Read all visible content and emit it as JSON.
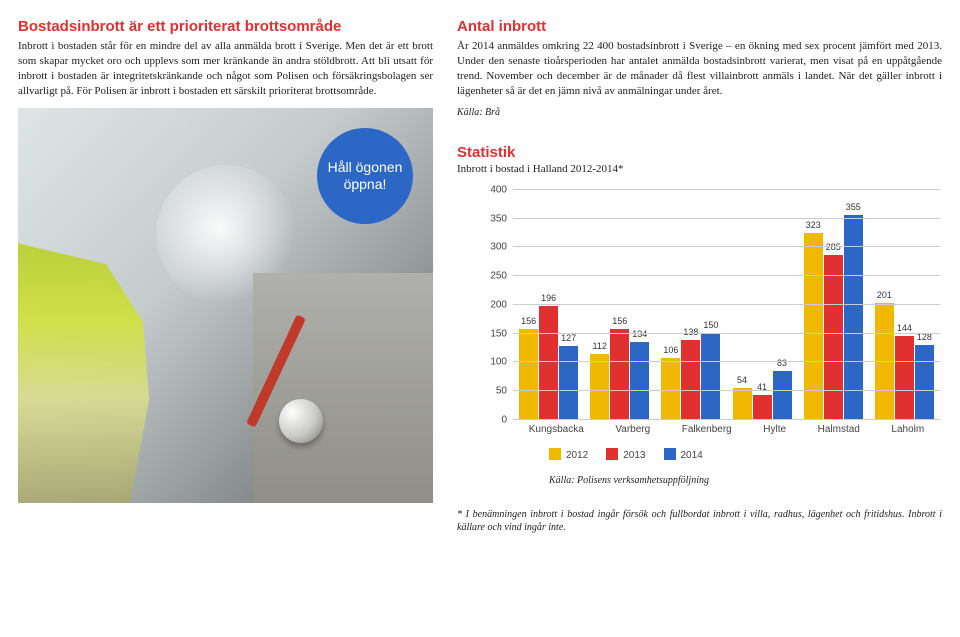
{
  "left": {
    "title": "Bostadsinbrott är ett prioriterat brottsområde",
    "body": "Inbrott i bostaden står för en mindre del av alla anmälda brott i Sverige. Men det är ett brott som skapar mycket oro och upplevs som mer kränkande än andra stöldbrott. Att bli utsatt för inbrott i bostaden är integritetskränkande och något som Polisen och försäkringsbolagen ser allvarligt på. För Polisen är inbrott i bostaden ett särskilt prioriterat brottsområde.",
    "badge": "Håll ögonen öppna!"
  },
  "right": {
    "antal_title": "Antal inbrott",
    "antal_body": "År 2014 anmäldes omkring 22 400 bostadsinbrott i Sverige – en ökning med sex procent jämfört med 2013. Under den senaste tioårsperioden har antalet anmälda bostadsinbrott varierat, men visat på en uppåtgående trend. November och december är de månader då flest villainbrott anmäls i landet. När det gäller inbrott i lägenheter så är det en jämn nivå av anmälningar under året.",
    "antal_source": "Källa: Brå",
    "stat_title": "Statistik",
    "stat_subtitle": "Inbrott i bostad i Halland 2012-2014*",
    "chart": {
      "ymax": 400,
      "ytick_step": 50,
      "categories": [
        "Kungsbacka",
        "Varberg",
        "Falkenberg",
        "Hylte",
        "Halmstad",
        "Laholm"
      ],
      "series": [
        {
          "year": "2012",
          "color": "#f1b800",
          "values": [
            156,
            112,
            106,
            54,
            323,
            201
          ]
        },
        {
          "year": "2013",
          "color": "#e03030",
          "values": [
            196,
            156,
            138,
            41,
            285,
            144
          ]
        },
        {
          "year": "2014",
          "color": "#2d67c5",
          "values": [
            127,
            134,
            150,
            83,
            355,
            128
          ]
        }
      ]
    },
    "chart_source": "Källa: Polisens verksamhetsuppföljning",
    "footnote": "* I benämningen inbrott i bostad ingår försök och fullbordat inbrott i villa, radhus, lägenhet och fritidshus. Inbrott i källare och vind ingår inte."
  }
}
